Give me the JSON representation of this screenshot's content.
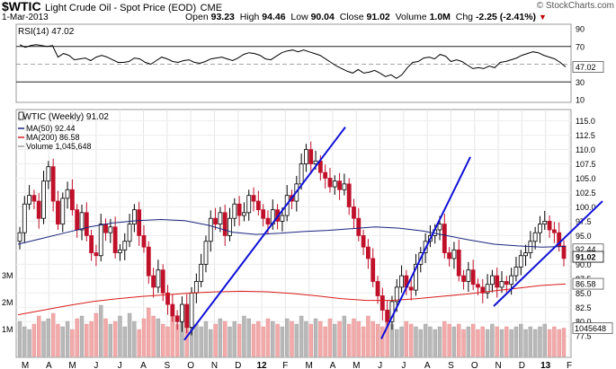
{
  "header": {
    "symbol": "$WTIC",
    "name": "Light Crude Oil - Spot Price (EOD)",
    "exchange": "CME",
    "copyright": "© StockCharts.com",
    "date": "1-Mar-2013",
    "quote": {
      "open_label": "Open",
      "open": "93.23",
      "high_label": "High",
      "high": "94.46",
      "low_label": "Low",
      "low": "90.04",
      "close_label": "Close",
      "close": "91.02",
      "volume_label": "Volume",
      "volume": "1.0M",
      "chg_label": "Chg",
      "chg": "-2.25 (-2.41%)"
    }
  },
  "chart_data": [
    {
      "type": "line",
      "title": "RSI(14) 47.02",
      "series": [
        {
          "name": "RSI(14)",
          "values": [
            72,
            69,
            71,
            72,
            71,
            70,
            71,
            58,
            62,
            60,
            55,
            56,
            57,
            54,
            58,
            60,
            58,
            55,
            52,
            52,
            53,
            57,
            56,
            52,
            50,
            54,
            58,
            56,
            53,
            52,
            54,
            55,
            52,
            51,
            53,
            56,
            57,
            58,
            56,
            54,
            57,
            61,
            63,
            62,
            60,
            56,
            55,
            59,
            63,
            65,
            66,
            64,
            66,
            64,
            62,
            60,
            56,
            52,
            48,
            45,
            42,
            40,
            44,
            40,
            41,
            43,
            40,
            36,
            38,
            34,
            38,
            46,
            52,
            53,
            57,
            58,
            56,
            61,
            59,
            53,
            55,
            53,
            49,
            45,
            46,
            45,
            48,
            46,
            52,
            53,
            55,
            57,
            60,
            62,
            64,
            63,
            60,
            58,
            56,
            52,
            47
          ]
        }
      ],
      "ylim": [
        10,
        90
      ],
      "yticks": [
        "90",
        "70",
        "50",
        "30",
        "10"
      ],
      "reference_lines": [
        70,
        50,
        30
      ],
      "last_value": "47.02"
    },
    {
      "type": "candlestick",
      "title": "$WTIC (Weekly) 91.02",
      "legend": [
        {
          "label": "MA(50) 92.44",
          "color": "#1a237e"
        },
        {
          "label": "MA(200) 86.58",
          "color": "#d81b1b"
        },
        {
          "label": "Volume 1,045,648",
          "color": "#9e9e9e"
        }
      ],
      "ylim": [
        75.5,
        116.5
      ],
      "yticks": [
        "115.0",
        "112.5",
        "110.0",
        "107.5",
        "105.0",
        "102.5",
        "100.0",
        "97.5",
        "95.0",
        "92.5",
        "90.0",
        "87.5",
        "85.0",
        "82.5",
        "80.0",
        "77.5"
      ],
      "price_tags": [
        {
          "label": "92.44",
          "value": 92.6,
          "bold": false
        },
        {
          "label": "91.02",
          "value": 91.3,
          "bold": true
        },
        {
          "label": "86.58",
          "value": 86.6,
          "bold": false
        }
      ],
      "volume_labels": [
        "3M",
        "2M",
        "1M"
      ],
      "volume_tag": "1045648",
      "x_labels": [
        "M",
        "A",
        "M",
        "J",
        "J",
        "A",
        "S",
        "O",
        "N",
        "D",
        "12",
        "F",
        "M",
        "A",
        "M",
        "J",
        "J",
        "A",
        "S",
        "O",
        "N",
        "D",
        "13",
        "F"
      ],
      "closes": [
        95.5,
        100.5,
        102.0,
        101.0,
        98.0,
        104.5,
        107.0,
        101.0,
        97.0,
        101.5,
        103.0,
        99.5,
        96.0,
        99.0,
        95.0,
        92.0,
        91.5,
        97.0,
        95.5,
        96.5,
        92.0,
        92.5,
        94.0,
        97.0,
        99.5,
        95.0,
        93.0,
        88.0,
        86.0,
        89.0,
        85.0,
        83.0,
        81.0,
        80.0,
        83.0,
        79.0,
        85.0,
        87.0,
        90.0,
        94.0,
        98.0,
        97.0,
        99.0,
        95.0,
        98.0,
        100.5,
        98.5,
        99.0,
        102.0,
        101.0,
        99.5,
        98.0,
        97.0,
        99.5,
        97.5,
        98.5,
        102.0,
        101.0,
        104.0,
        107.5,
        110.0,
        107.5,
        108.0,
        106.0,
        105.0,
        103.5,
        104.5,
        103.0,
        104.0,
        100.0,
        98.0,
        95.0,
        93.0,
        91.0,
        87.0,
        84.5,
        82.0,
        80.0,
        83.5,
        86.0,
        88.0,
        86.0,
        85.5,
        90.0,
        92.0,
        94.0,
        95.0,
        96.0,
        97.0,
        92.0,
        91.0,
        92.5,
        88.0,
        87.0,
        89.0,
        86.5,
        86.0,
        85.0,
        86.5,
        88.0,
        86.0,
        87.0,
        86.5,
        88.0,
        89.5,
        91.5,
        92.0,
        94.0,
        95.5,
        97.0,
        97.5,
        96.0,
        95.5,
        93.2,
        91.02
      ],
      "ma50": [
        93.5,
        94.5,
        95.5,
        96.5,
        97.2,
        97.6,
        97.8,
        97.6,
        96.8,
        95.6,
        95.2,
        95.4,
        95.7,
        95.9,
        96.2,
        96.5,
        96.3,
        95.8,
        95.0,
        94.2,
        93.5,
        93.2,
        93.0,
        93.1
      ],
      "ma200": [
        81.2,
        82.0,
        82.8,
        83.5,
        84.0,
        84.4,
        84.7,
        85.0,
        85.2,
        85.3,
        85.2,
        84.9,
        84.5,
        84.0,
        83.7,
        83.7,
        84.0,
        84.4,
        84.8,
        85.3,
        85.8,
        86.3,
        86.58
      ],
      "volume_millions": [
        1.3,
        1.1,
        1.0,
        1.2,
        1.5,
        1.3,
        1.4,
        1.6,
        1.2,
        1.1,
        1.3,
        1.0,
        1.4,
        1.5,
        1.2,
        1.3,
        1.6,
        1.9,
        1.4,
        1.2,
        1.3,
        1.5,
        1.1,
        1.6,
        1.3,
        1.0,
        1.4,
        1.8,
        1.5,
        1.4,
        1.2,
        1.1,
        1.6,
        1.2,
        1.4,
        1.7,
        1.3,
        1.2,
        1.1,
        1.3,
        1.0,
        1.2,
        1.4,
        1.3,
        1.1,
        1.3,
        1.2,
        1.5,
        1.4,
        1.2,
        1.3,
        1.1,
        1.4,
        1.3,
        1.2,
        1.1,
        1.4,
        1.3,
        1.2,
        1.5,
        1.3,
        1.2,
        1.4,
        1.3,
        1.1,
        1.4,
        1.2,
        1.3,
        1.5,
        1.2,
        1.4,
        1.3,
        1.1,
        1.5,
        1.3,
        1.2,
        1.1,
        1.3,
        1.2,
        1.0,
        1.1,
        1.3,
        1.2,
        1.1,
        1.0,
        1.2,
        1.1,
        1.0,
        1.1,
        1.3,
        1.2,
        1.1,
        1.2,
        1.0,
        1.1,
        1.2,
        1.0,
        1.1,
        1.0,
        1.2,
        1.1,
        1.0,
        1.1,
        1.0,
        1.1,
        1.2,
        1.0,
        1.1,
        1.0,
        1.1,
        1.2,
        1.0,
        1.1,
        1.0,
        1.05
      ],
      "trendlines": [
        {
          "from": [
            205,
            76.8
          ],
          "to": [
            384,
            113.9
          ]
        },
        {
          "from": [
            424,
            77.0
          ],
          "to": [
            523,
            108.7
          ]
        },
        {
          "from": [
            549,
            82.7
          ],
          "to": [
            670,
            101.0
          ]
        }
      ]
    }
  ]
}
